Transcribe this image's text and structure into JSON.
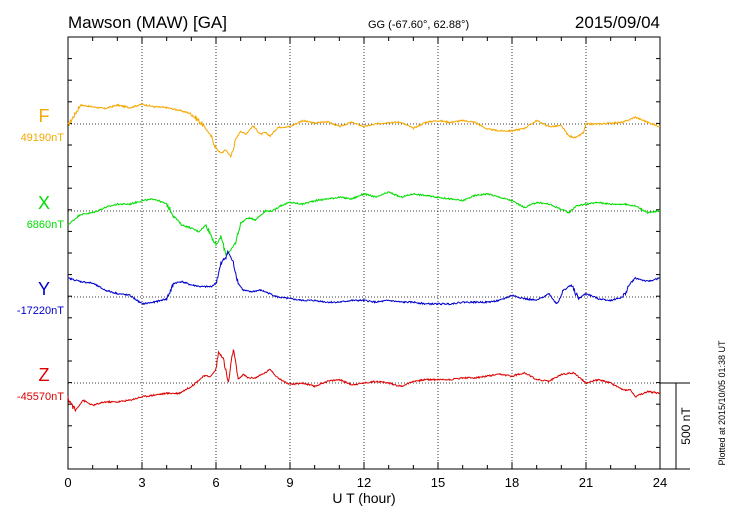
{
  "header": {
    "station": "Mawson (MAW)  [GA]",
    "coords": "GG (-67.60°,  62.88°)",
    "date": "2015/09/04"
  },
  "footer": {
    "plotted": "Plotted at 2015/10/05 01:38 UT"
  },
  "colors": {
    "F": "#f5a800",
    "X": "#00dd00",
    "Y": "#0000cc",
    "Z": "#dd0000",
    "axis": "#000000"
  },
  "chart_data": {
    "type": "line",
    "xlabel": "U T (hour)",
    "xlim": [
      0,
      24
    ],
    "x_ticks": [
      "0",
      "3",
      "6",
      "9",
      "12",
      "15",
      "18",
      "21",
      "24"
    ],
    "scale_bar": {
      "label": "500 nT",
      "value_nT": 500
    },
    "series": [
      {
        "name": "F",
        "baseline_label": "49190nT",
        "baseline_nT": 49190,
        "x": [
          0,
          0.5,
          1,
          1.5,
          2,
          2.5,
          3,
          3.5,
          4,
          4.5,
          5,
          5.5,
          5.8,
          6,
          6.2,
          6.4,
          6.6,
          6.8,
          7,
          7.2,
          7.5,
          7.8,
          8,
          8.2,
          8.5,
          9,
          9.5,
          10,
          10.5,
          11,
          11.5,
          12,
          12.5,
          13,
          13.5,
          14,
          14.5,
          15,
          15.5,
          16,
          16.5,
          17,
          17.5,
          18,
          18.5,
          19,
          19.5,
          20,
          20.3,
          20.6,
          20.9,
          21,
          21.5,
          22,
          22.5,
          23,
          23.5,
          24
        ],
        "y": [
          -10,
          110,
          100,
          90,
          110,
          95,
          115,
          100,
          95,
          80,
          60,
          -10,
          -70,
          -140,
          -170,
          -150,
          -190,
          -90,
          -40,
          -60,
          -10,
          -60,
          -50,
          -70,
          -20,
          -15,
          20,
          5,
          15,
          -15,
          10,
          -15,
          0,
          10,
          10,
          -25,
          10,
          20,
          10,
          20,
          10,
          -30,
          -40,
          -40,
          -25,
          20,
          -15,
          -10,
          -70,
          -80,
          -50,
          0,
          0,
          5,
          10,
          40,
          10,
          -15
        ]
      },
      {
        "name": "X",
        "baseline_label": "6860nT",
        "baseline_nT": 6860,
        "x": [
          0,
          0.5,
          1,
          1.5,
          2,
          2.5,
          3,
          3.5,
          4,
          4.3,
          4.6,
          5,
          5.3,
          5.6,
          6,
          6.2,
          6.4,
          6.6,
          6.8,
          7,
          7.3,
          7.6,
          8,
          8.3,
          8.6,
          9,
          9.5,
          10,
          10.5,
          11,
          11.5,
          12,
          12.5,
          13,
          13.5,
          14,
          14.5,
          15,
          15.5,
          16,
          16.5,
          17,
          17.5,
          18,
          18.5,
          19,
          19.5,
          20,
          20.3,
          20.6,
          21,
          21.5,
          22,
          22.5,
          23,
          23.5,
          24
        ],
        "y": [
          -80,
          -20,
          -10,
          20,
          40,
          40,
          60,
          70,
          40,
          -30,
          -80,
          -100,
          -120,
          -80,
          -200,
          -150,
          -250,
          -230,
          -180,
          -70,
          -40,
          -50,
          0,
          0,
          30,
          50,
          40,
          60,
          70,
          80,
          70,
          100,
          80,
          110,
          80,
          100,
          90,
          80,
          70,
          60,
          90,
          100,
          80,
          60,
          20,
          50,
          40,
          10,
          -10,
          30,
          40,
          50,
          40,
          40,
          30,
          -10,
          0
        ]
      },
      {
        "name": "Y",
        "baseline_label": "-17220nT",
        "baseline_nT": -17220,
        "x": [
          0,
          0.5,
          1,
          1.5,
          2,
          2.5,
          3,
          3.5,
          4,
          4.3,
          4.6,
          5,
          5.4,
          5.8,
          6,
          6.2,
          6.5,
          6.7,
          6.9,
          7.1,
          7.4,
          7.8,
          8,
          8.5,
          9,
          9.5,
          10,
          10.5,
          11,
          11.5,
          12,
          12.5,
          13,
          13.5,
          14,
          14.5,
          15,
          15.5,
          16,
          16.5,
          17,
          17.5,
          18,
          18.5,
          19,
          19.5,
          19.8,
          20.1,
          20.4,
          20.7,
          21,
          21.5,
          22,
          22.5,
          22.8,
          23,
          23.5,
          24
        ],
        "y": [
          110,
          90,
          80,
          40,
          20,
          10,
          -40,
          -30,
          -10,
          80,
          90,
          70,
          60,
          60,
          80,
          190,
          260,
          200,
          80,
          40,
          30,
          40,
          30,
          0,
          -10,
          -20,
          -20,
          -30,
          -30,
          -20,
          -20,
          -30,
          -20,
          -30,
          -30,
          -40,
          -40,
          -40,
          -30,
          -30,
          -30,
          -20,
          10,
          -10,
          -20,
          20,
          -40,
          40,
          70,
          -10,
          20,
          -10,
          -20,
          0,
          80,
          110,
          90,
          110
        ]
      },
      {
        "name": "Z",
        "baseline_label": "-45570nT",
        "baseline_nT": -45570,
        "x": [
          0,
          0.3,
          0.6,
          1,
          1.5,
          2,
          2.5,
          3,
          3.5,
          4,
          4.5,
          5,
          5.5,
          5.8,
          6,
          6.1,
          6.3,
          6.5,
          6.7,
          6.9,
          7.1,
          7.3,
          7.6,
          8,
          8.2,
          8.5,
          9,
          9.5,
          10,
          10.5,
          11,
          11.5,
          12,
          12.5,
          13,
          13.5,
          14,
          14.5,
          15,
          15.5,
          16,
          16.5,
          17,
          17.5,
          18,
          18.5,
          19,
          19.5,
          20,
          20.5,
          21,
          21.5,
          22,
          22.5,
          22.8,
          23,
          23.5,
          24
        ],
        "y": [
          -90,
          -160,
          -100,
          -130,
          -110,
          -110,
          -100,
          -80,
          -70,
          -60,
          -60,
          -20,
          40,
          40,
          80,
          180,
          140,
          0,
          200,
          20,
          50,
          30,
          30,
          60,
          80,
          30,
          -10,
          0,
          -20,
          10,
          20,
          -10,
          0,
          10,
          0,
          -20,
          10,
          20,
          20,
          20,
          30,
          30,
          40,
          50,
          40,
          60,
          20,
          10,
          50,
          60,
          0,
          20,
          0,
          -40,
          -40,
          -80,
          -50,
          -60
        ]
      }
    ]
  }
}
